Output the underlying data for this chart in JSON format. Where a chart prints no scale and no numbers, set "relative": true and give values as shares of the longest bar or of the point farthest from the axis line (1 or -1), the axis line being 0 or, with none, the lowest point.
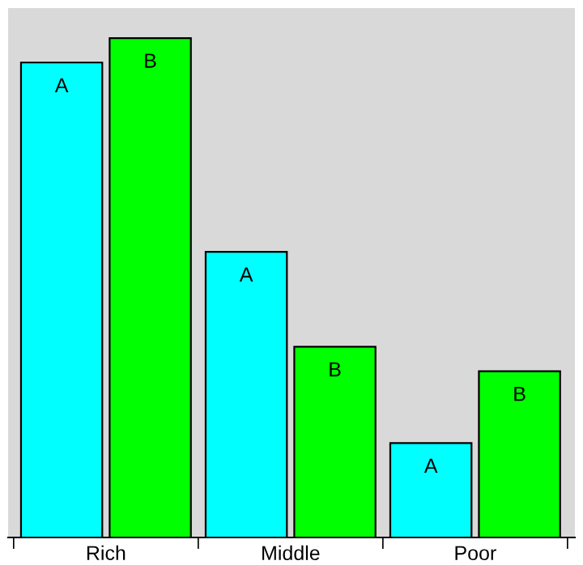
{
  "chart_data": {
    "type": "bar",
    "relative": true,
    "categories": [
      "Rich",
      "Middle",
      "Poor"
    ],
    "series": [
      {
        "name": "A",
        "color": "#00ffff",
        "values": [
          0.951,
          0.572,
          0.189
        ]
      },
      {
        "name": "B",
        "color": "#00ff00",
        "values": [
          1,
          0.382,
          0.333
        ]
      }
    ],
    "grid": false,
    "legend": false
  }
}
